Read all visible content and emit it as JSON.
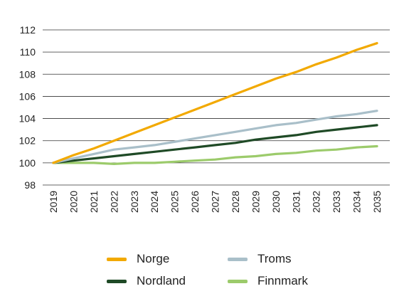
{
  "chart_data": {
    "type": "line",
    "x": [
      "2019",
      "2020",
      "2021",
      "2022",
      "2023",
      "2024",
      "2025",
      "2026",
      "2027",
      "2028",
      "2029",
      "2030",
      "2031",
      "2032",
      "2033",
      "2034",
      "2035"
    ],
    "ylim": [
      98,
      112
    ],
    "yticks": [
      98,
      100,
      102,
      104,
      106,
      108,
      110,
      112
    ],
    "grid": "horizontal",
    "legend_position": "bottom",
    "series": [
      {
        "name": "Norge",
        "color": "#F2A900",
        "values": [
          100.0,
          100.7,
          101.3,
          102.0,
          102.7,
          103.4,
          104.1,
          104.8,
          105.5,
          106.2,
          106.9,
          107.6,
          108.2,
          108.9,
          109.5,
          110.2,
          110.8
        ]
      },
      {
        "name": "Troms",
        "color": "#A9BFC9",
        "values": [
          100.0,
          100.4,
          100.8,
          101.2,
          101.4,
          101.6,
          101.9,
          102.2,
          102.5,
          102.8,
          103.1,
          103.4,
          103.6,
          103.9,
          104.2,
          104.4,
          104.7
        ]
      },
      {
        "name": "Nordland",
        "color": "#1F4A26",
        "values": [
          100.0,
          100.2,
          100.4,
          100.6,
          100.8,
          101.0,
          101.2,
          101.4,
          101.6,
          101.8,
          102.1,
          102.3,
          102.5,
          102.8,
          103.0,
          103.2,
          103.4
        ]
      },
      {
        "name": "Finnmark",
        "color": "#9CCB6B",
        "values": [
          100.0,
          100.0,
          100.0,
          99.9,
          100.0,
          100.0,
          100.1,
          100.2,
          100.3,
          100.5,
          100.6,
          100.8,
          100.9,
          101.1,
          101.2,
          101.4,
          101.5
        ]
      }
    ]
  }
}
